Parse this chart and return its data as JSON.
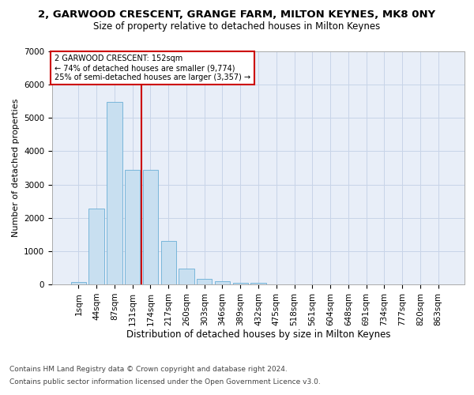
{
  "title1": "2, GARWOOD CRESCENT, GRANGE FARM, MILTON KEYNES, MK8 0NY",
  "title2": "Size of property relative to detached houses in Milton Keynes",
  "xlabel": "Distribution of detached houses by size in Milton Keynes",
  "ylabel": "Number of detached properties",
  "annotation_title": "2 GARWOOD CRESCENT: 152sqm",
  "annotation_line1": "← 74% of detached houses are smaller (9,774)",
  "annotation_line2": "25% of semi-detached houses are larger (3,357) →",
  "footer1": "Contains HM Land Registry data © Crown copyright and database right 2024.",
  "footer2": "Contains public sector information licensed under the Open Government Licence v3.0.",
  "bar_color": "#c8dff0",
  "bar_edge_color": "#6aafd6",
  "grid_color": "#c8d4e8",
  "background_color": "#e8eef8",
  "vline_color": "#cc0000",
  "annotation_box_color": "#cc0000",
  "categories": [
    "1sqm",
    "44sqm",
    "87sqm",
    "131sqm",
    "174sqm",
    "217sqm",
    "260sqm",
    "303sqm",
    "346sqm",
    "389sqm",
    "432sqm",
    "475sqm",
    "518sqm",
    "561sqm",
    "604sqm",
    "648sqm",
    "691sqm",
    "734sqm",
    "777sqm",
    "820sqm",
    "863sqm"
  ],
  "values": [
    80,
    2280,
    5480,
    3440,
    3430,
    1310,
    470,
    170,
    90,
    55,
    40,
    0,
    0,
    0,
    0,
    0,
    0,
    0,
    0,
    0,
    0
  ],
  "ylim": [
    0,
    7000
  ],
  "yticks": [
    0,
    1000,
    2000,
    3000,
    4000,
    5000,
    6000,
    7000
  ],
  "title1_fontsize": 9.5,
  "title2_fontsize": 8.5,
  "xlabel_fontsize": 8.5,
  "ylabel_fontsize": 8,
  "tick_fontsize": 7.5,
  "ann_fontsize": 7,
  "footer_fontsize": 6.5
}
